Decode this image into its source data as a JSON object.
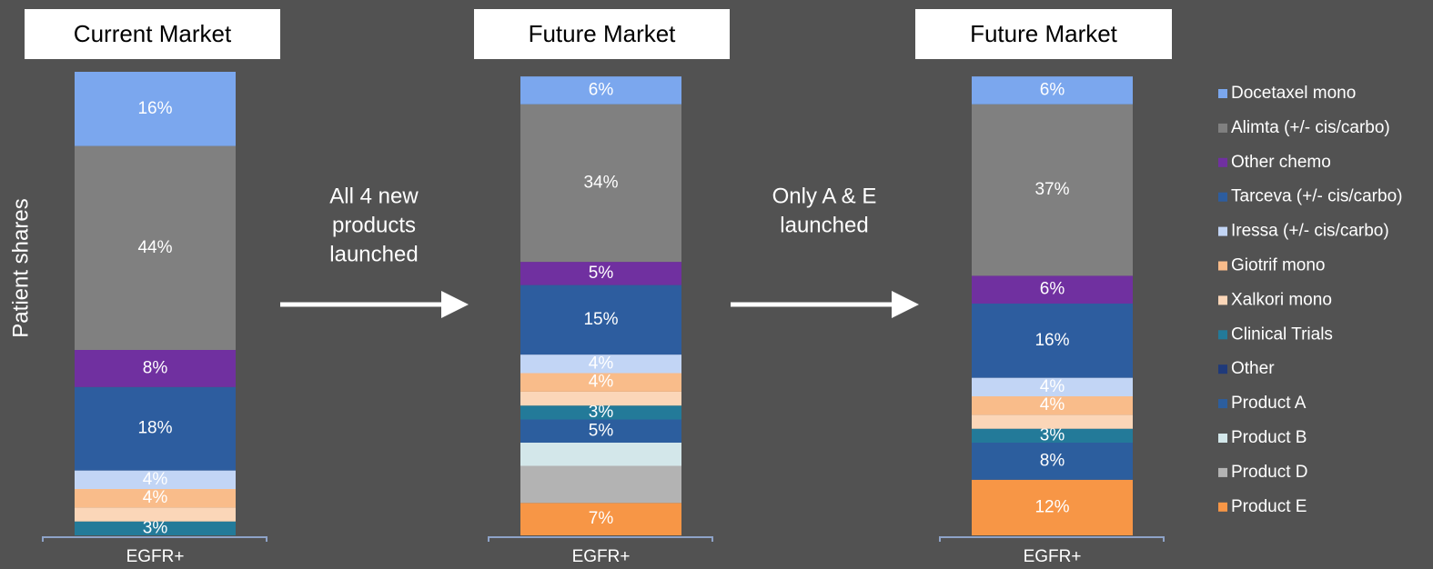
{
  "legend": [
    {
      "name": "Docetaxel mono",
      "color": "#7ba7ee"
    },
    {
      "name": "Alimta (+/- cis/carbo)",
      "color": "#808080"
    },
    {
      "name": "Other chemo",
      "color": "#7030a0"
    },
    {
      "name": "Tarceva (+/- cis/carbo)",
      "color": "#2d5d9f"
    },
    {
      "name": "Iressa (+/- cis/carbo)",
      "color": "#c2d5f5"
    },
    {
      "name": "Giotrif mono",
      "color": "#f9bc8a"
    },
    {
      "name": "Xalkori mono",
      "color": "#fbd6b8"
    },
    {
      "name": "Clinical Trials",
      "color": "#237a99"
    },
    {
      "name": "Other",
      "color": "#1f3a7a"
    },
    {
      "name": "Product A",
      "color": "#2c5e9e"
    },
    {
      "name": "Product B",
      "color": "#d3e7ea"
    },
    {
      "name": "Product D",
      "color": "#b3b3b3"
    },
    {
      "name": "Product E",
      "color": "#f79646"
    }
  ],
  "annotations": [
    [
      "All 4 new",
      "products",
      "launched"
    ],
    [
      "Only  A & E",
      "launched"
    ]
  ],
  "chart_data": [
    {
      "type": "stacked_bar",
      "title": "Current Market",
      "y_label": "Patient shares",
      "categories": [
        "EGFR+"
      ],
      "ylim": [
        0,
        100
      ],
      "series": [
        {
          "values": [
            16
          ],
          "value_labels": [
            "16%"
          ]
        },
        {
          "values": [
            44
          ],
          "value_labels": [
            "44%"
          ]
        },
        {
          "values": [
            8
          ],
          "value_labels": [
            "8%"
          ]
        },
        {
          "values": [
            18
          ],
          "value_labels": [
            "18%"
          ]
        },
        {
          "values": [
            4
          ],
          "value_labels": [
            "4%"
          ]
        },
        {
          "values": [
            4
          ],
          "value_labels": [
            "4%"
          ]
        },
        {
          "values": [
            3
          ]
        },
        {
          "values": [
            3
          ],
          "value_labels": [
            "3%"
          ]
        },
        {
          "values": [
            null
          ]
        },
        {
          "values": [
            null
          ]
        },
        {
          "values": [
            null
          ]
        },
        {
          "values": [
            null
          ]
        },
        {
          "values": [
            null
          ]
        }
      ]
    },
    {
      "type": "stacked_bar",
      "title": "Future Market",
      "categories": [
        "EGFR+"
      ],
      "ylim": [
        0,
        100
      ],
      "series": [
        {
          "values": [
            6
          ],
          "value_labels": [
            "6%"
          ]
        },
        {
          "values": [
            34
          ],
          "value_labels": [
            "34%"
          ]
        },
        {
          "values": [
            5
          ],
          "value_labels": [
            "5%"
          ]
        },
        {
          "values": [
            15
          ],
          "value_labels": [
            "15%"
          ]
        },
        {
          "values": [
            4
          ],
          "value_labels": [
            "4%"
          ]
        },
        {
          "values": [
            4
          ],
          "value_labels": [
            "4%"
          ]
        },
        {
          "values": [
            3
          ]
        },
        {
          "values": [
            3
          ],
          "value_labels": [
            "3%"
          ]
        },
        {
          "values": [
            null
          ]
        },
        {
          "values": [
            5
          ],
          "value_labels": [
            "5%"
          ]
        },
        {
          "values": [
            5
          ]
        },
        {
          "values": [
            8
          ]
        },
        {
          "values": [
            7
          ],
          "value_labels": [
            "7%"
          ]
        }
      ]
    },
    {
      "type": "stacked_bar",
      "title": "Future Market",
      "categories": [
        "EGFR+"
      ],
      "ylim": [
        0,
        100
      ],
      "series": [
        {
          "values": [
            6
          ],
          "value_labels": [
            "6%"
          ]
        },
        {
          "values": [
            37
          ],
          "value_labels": [
            "37%"
          ]
        },
        {
          "values": [
            6
          ],
          "value_labels": [
            "6%"
          ]
        },
        {
          "values": [
            16
          ],
          "value_labels": [
            "16%"
          ]
        },
        {
          "values": [
            4
          ],
          "value_labels": [
            "4%"
          ]
        },
        {
          "values": [
            4
          ],
          "value_labels": [
            "4%"
          ]
        },
        {
          "values": [
            3
          ]
        },
        {
          "values": [
            3
          ],
          "value_labels": [
            "3%"
          ]
        },
        {
          "values": [
            null
          ]
        },
        {
          "values": [
            8
          ],
          "value_labels": [
            "8%"
          ]
        },
        {
          "values": [
            null
          ]
        },
        {
          "values": [
            null
          ]
        },
        {
          "values": [
            12
          ],
          "value_labels": [
            "12%"
          ]
        }
      ]
    }
  ]
}
